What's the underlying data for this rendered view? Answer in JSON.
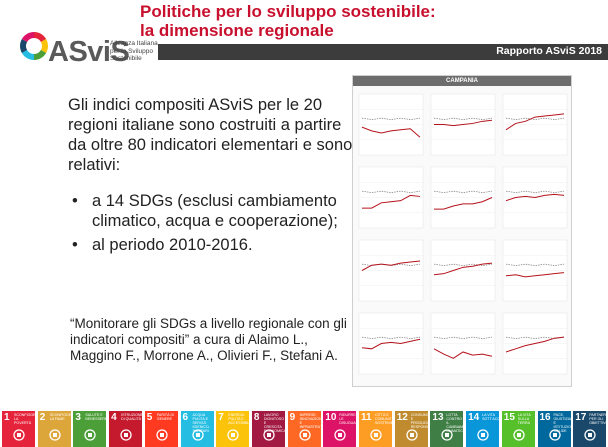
{
  "title": {
    "line1": "Politiche per lo sviluppo sostenibile:",
    "line2": "la dimensione regionale"
  },
  "logo": {
    "name": "ASviS",
    "subtitle": [
      "Alleanza Italiana",
      "per lo Sviluppo",
      "Sostenibile"
    ]
  },
  "banner": {
    "text": "Rapporto ASviS 2018"
  },
  "body": {
    "intro": "Gli indici compositi ASviS per le 20 regioni italiane sono costruiti a partire da oltre 80 indicatori elementari e sono relativi:",
    "bullets": [
      "a 14 SDGs (esclusi cambiamento climatico, acqua e cooperazione);",
      "al periodo 2010-2016."
    ],
    "quote": "“Monitorare gli SDGs a livello regionale con gli indicatori compositi” a cura di Alaimo L., Maggino F., Morrone A., Olivieri F., Stefani A."
  },
  "chart_panel": {
    "title": "CAMPANIA",
    "series_colors": {
      "main": "#b5121b",
      "reference": "#888888"
    }
  },
  "sdg_goals": [
    {
      "num": "1",
      "name": "SCONFIGGERE LA POVERTÀ",
      "color": "#e5243b",
      "icon": "people-icon"
    },
    {
      "num": "2",
      "name": "SCONFIGGERE LA FAME",
      "color": "#dda63a",
      "icon": "bowl-icon"
    },
    {
      "num": "3",
      "name": "SALUTE E BENESSERE",
      "color": "#4c9f38",
      "icon": "heartbeat-icon"
    },
    {
      "num": "4",
      "name": "ISTRUZIONE DI QUALITÀ",
      "color": "#c5192d",
      "icon": "book-icon"
    },
    {
      "num": "5",
      "name": "PARITÀ DI GENERE",
      "color": "#ff3a21",
      "icon": "gender-icon"
    },
    {
      "num": "6",
      "name": "ACQUA PULITA E SERVIZI IGIENICO-SANITARI",
      "color": "#26bde2",
      "icon": "water-icon"
    },
    {
      "num": "7",
      "name": "ENERGIA PULITA E ACCESSIBILE",
      "color": "#fcc30b",
      "icon": "sun-icon"
    },
    {
      "num": "8",
      "name": "LAVORO DIGNITOSO E CRESCITA ECONOMICA",
      "color": "#a21942",
      "icon": "growth-icon"
    },
    {
      "num": "9",
      "name": "IMPRESE, INNOVAZIONE E INFRASTRUTTURE",
      "color": "#fd6925",
      "icon": "cubes-icon"
    },
    {
      "num": "10",
      "name": "RIDURRE LE DISUGUAGLIANZE",
      "color": "#dd1367",
      "icon": "equal-icon"
    },
    {
      "num": "11",
      "name": "CITTÀ E COMUNITÀ SOSTENIBILI",
      "color": "#fd9d24",
      "icon": "city-icon"
    },
    {
      "num": "12",
      "name": "CONSUMO E PRODUZIONE RESPONSABILI",
      "color": "#bf8b2e",
      "icon": "infinity-icon"
    },
    {
      "num": "13",
      "name": "LOTTA CONTRO IL CAMBIAMENTO CLIMATICO",
      "color": "#3f7e44",
      "icon": "eye-icon"
    },
    {
      "num": "14",
      "name": "LA VITA SOTT'ACQUA",
      "color": "#0a97d9",
      "icon": "fish-icon"
    },
    {
      "num": "15",
      "name": "LA VITA SULLA TERRA",
      "color": "#56c02b",
      "icon": "tree-icon"
    },
    {
      "num": "16",
      "name": "PACE, GIUSTIZIA E ISTITUZIONI SOLIDE",
      "color": "#00689d",
      "icon": "dove-icon"
    },
    {
      "num": "17",
      "name": "PARTNERSHIP PER GLI OBIETTIVI",
      "color": "#19486a",
      "icon": "rings-icon"
    }
  ]
}
